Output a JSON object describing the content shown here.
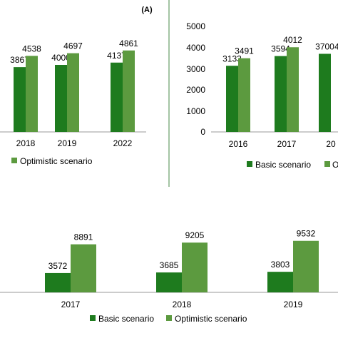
{
  "colors": {
    "basic": "#1e7b1e",
    "optimistic": "#5c9a3f",
    "divider": "#4a8a4a",
    "axis": "#999999"
  },
  "chart_data": [
    {
      "type": "bar",
      "panel_label": "(A)",
      "categories": [
        "2018",
        "2019",
        "2022"
      ],
      "series": [
        {
          "name": "Basic scenario",
          "values": [
            3867,
            4000,
            4137
          ]
        },
        {
          "name": "Optimistic scenario",
          "values": [
            4538,
            4697,
            4861
          ]
        }
      ],
      "legend": {
        "entries": [
          "Optimistic scenario"
        ],
        "placement": "bottom"
      },
      "ylim": [
        0,
        5000
      ]
    },
    {
      "type": "bar",
      "categories": [
        "2016",
        "2017",
        "20"
      ],
      "series": [
        {
          "name": "Basic scenario",
          "values": [
            3133,
            3594,
            3700
          ]
        },
        {
          "name": "Optimistic scenario",
          "values": [
            3491,
            4012,
            null
          ]
        }
      ],
      "value_labels": [
        [
          "3133",
          "3594",
          "3700"
        ],
        [
          "3491",
          "4012",
          "4"
        ]
      ],
      "y_ticks": [
        "0",
        "1000",
        "2000",
        "3000",
        "4000",
        "5000"
      ],
      "legend": {
        "entries": [
          "Basic scenario",
          "O"
        ],
        "placement": "bottom"
      },
      "ylim": [
        0,
        5000
      ]
    },
    {
      "type": "bar",
      "categories": [
        "2017",
        "2018",
        "2019"
      ],
      "series": [
        {
          "name": "Basic scenario",
          "values": [
            3572,
            3685,
            3803
          ]
        },
        {
          "name": "Optimistic scenario",
          "values": [
            8891,
            9205,
            9532
          ]
        }
      ],
      "legend": {
        "entries": [
          "Basic scenario",
          "Optimistic scenario"
        ],
        "placement": "bottom"
      },
      "ylim": [
        0,
        12000
      ]
    }
  ]
}
